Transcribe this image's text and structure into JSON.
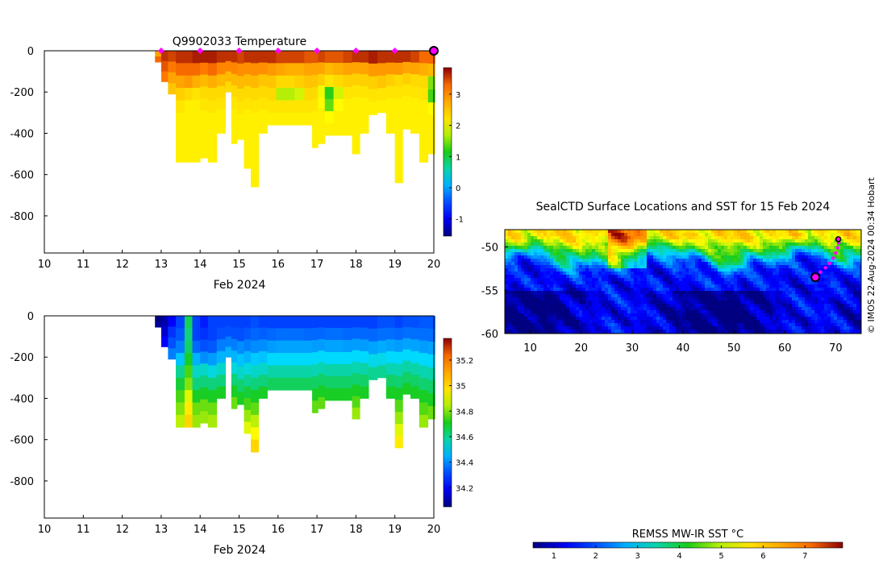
{
  "chart_data": [
    {
      "id": "temperature-profile",
      "type": "heatmap",
      "title": "Q9902033  Temperature",
      "xlabel": "Feb 2024",
      "x_ticks": [
        10,
        11,
        12,
        13,
        14,
        15,
        16,
        17,
        18,
        19,
        20
      ],
      "y_ticks": [
        0,
        -200,
        -400,
        -600,
        -800
      ],
      "xlim": [
        10,
        20
      ],
      "ylim": [
        -980,
        0
      ],
      "colorbar": {
        "range": [
          -1.55,
          3.85
        ],
        "ticks": [
          "-1",
          "0",
          "1",
          "2",
          "3"
        ],
        "tick_values": [
          -1,
          0,
          1,
          2,
          3
        ],
        "colormap": "jet"
      },
      "surface_markers_x": [
        13,
        14,
        15,
        16,
        17,
        18,
        19
      ],
      "last_position_x": 20,
      "profiles": [
        {
          "x": 12.9,
          "depth": 55,
          "values": [
            2.8,
            3.3
          ]
        },
        {
          "x": 13.1,
          "depth": 150,
          "values": [
            3.6,
            3.4,
            3.2
          ]
        },
        {
          "x": 13.25,
          "depth": 210,
          "values": [
            3.5,
            3.2,
            2.8,
            2.5
          ]
        },
        {
          "x": 13.5,
          "depth": 540,
          "values": [
            3.6,
            3.3,
            2.8,
            2.4,
            2.2,
            2.1,
            2.1,
            2.1,
            2.1
          ]
        },
        {
          "x": 13.7,
          "depth": 540,
          "values": [
            3.6,
            3.3,
            2.9,
            2.3,
            2.1,
            2.1,
            2.1,
            2.1,
            2.1
          ]
        },
        {
          "x": 13.9,
          "depth": 540,
          "values": [
            3.7,
            3.3,
            2.7,
            2.2,
            2.1,
            2.1,
            2.1,
            2.1,
            2.1
          ]
        },
        {
          "x": 14.1,
          "depth": 520,
          "values": [
            3.7,
            3.2,
            2.6,
            2.3,
            2.2,
            2.1,
            2.1,
            2.1,
            2.1
          ]
        },
        {
          "x": 14.3,
          "depth": 540,
          "values": [
            3.7,
            3.3,
            2.7,
            2.3,
            2.2,
            2.1,
            2.1,
            2.1,
            2.1
          ]
        },
        {
          "x": 14.55,
          "depth": 400,
          "values": [
            3.6,
            3.1,
            2.6,
            2.3,
            2.2,
            2.1,
            2.1
          ]
        },
        {
          "x": 14.75,
          "depth": 200,
          "values": [
            3.6,
            3.1,
            2.6,
            2.3
          ]
        },
        {
          "x": 14.85,
          "depth": 450,
          "values": [
            3.6,
            3.1,
            2.6,
            2.3,
            2.2,
            2.1,
            2.1,
            2.1
          ]
        },
        {
          "x": 15.05,
          "depth": 430,
          "values": [
            3.5,
            3.0,
            2.6,
            2.3,
            2.2,
            2.1,
            2.1
          ]
        },
        {
          "x": 15.2,
          "depth": 570,
          "values": [
            3.6,
            3.0,
            2.6,
            2.3,
            2.2,
            2.1,
            2.1,
            2.1,
            2.1,
            2.1
          ]
        },
        {
          "x": 15.4,
          "depth": 660,
          "values": [
            3.6,
            3.0,
            2.6,
            2.3,
            2.2,
            2.1,
            2.1,
            2.1,
            2.1,
            2.1,
            2.1
          ]
        },
        {
          "x": 15.6,
          "depth": 400,
          "values": [
            3.6,
            3.0,
            2.5,
            2.3,
            2.2,
            2.1,
            2.1
          ]
        },
        {
          "x": 15.85,
          "depth": 360,
          "values": [
            3.6,
            2.9,
            2.5,
            2.3,
            2.2,
            2.1
          ]
        },
        {
          "x": 16.05,
          "depth": 360,
          "values": [
            3.5,
            2.8,
            2.3,
            1.7,
            2.2,
            2.1
          ]
        },
        {
          "x": 16.3,
          "depth": 360,
          "values": [
            3.5,
            2.7,
            2.3,
            1.7,
            2.2,
            2.1
          ]
        },
        {
          "x": 16.55,
          "depth": 360,
          "values": [
            3.5,
            2.7,
            2.4,
            1.8,
            2.2,
            2.1
          ]
        },
        {
          "x": 16.8,
          "depth": 360,
          "values": [
            3.4,
            2.8,
            2.5,
            2.3,
            2.2,
            2.1
          ]
        },
        {
          "x": 16.95,
          "depth": 470,
          "values": [
            3.4,
            2.8,
            2.5,
            2.3,
            2.2,
            2.1,
            2.1,
            2.1
          ]
        },
        {
          "x": 17.1,
          "depth": 450,
          "values": [
            3.5,
            2.8,
            2.4,
            1.9,
            2.0,
            2.1,
            2.1,
            2.1
          ]
        },
        {
          "x": 17.3,
          "depth": 410,
          "values": [
            3.4,
            2.6,
            2.2,
            1.2,
            1.4,
            2.0,
            2.1
          ]
        },
        {
          "x": 17.55,
          "depth": 410,
          "values": [
            3.4,
            2.7,
            2.3,
            1.8,
            2.0,
            2.1,
            2.1
          ]
        },
        {
          "x": 17.8,
          "depth": 410,
          "values": [
            3.5,
            2.8,
            2.4,
            2.2,
            2.1,
            2.1,
            2.1
          ]
        },
        {
          "x": 18.0,
          "depth": 500,
          "values": [
            3.6,
            2.8,
            2.4,
            2.2,
            2.1,
            2.1,
            2.1,
            2.1,
            2.1
          ]
        },
        {
          "x": 18.2,
          "depth": 400,
          "values": [
            3.6,
            2.8,
            2.4,
            2.2,
            2.1,
            2.1,
            2.1
          ]
        },
        {
          "x": 18.45,
          "depth": 310,
          "values": [
            3.7,
            2.9,
            2.4,
            2.2,
            2.1
          ]
        },
        {
          "x": 18.65,
          "depth": 300,
          "values": [
            3.6,
            2.9,
            2.5,
            2.2,
            2.1
          ]
        },
        {
          "x": 18.9,
          "depth": 400,
          "values": [
            3.6,
            2.9,
            2.4,
            2.2,
            2.1,
            2.1,
            2.1
          ]
        },
        {
          "x": 19.1,
          "depth": 640,
          "values": [
            3.6,
            2.9,
            2.3,
            2.2,
            2.1,
            2.1,
            2.1,
            2.1,
            2.1,
            2.1,
            2.1
          ]
        },
        {
          "x": 19.3,
          "depth": 380,
          "values": [
            3.6,
            2.8,
            2.4,
            2.2,
            2.1,
            2.1,
            2.1
          ]
        },
        {
          "x": 19.5,
          "depth": 400,
          "values": [
            3.5,
            2.8,
            2.3,
            2.2,
            2.1,
            2.1,
            2.1
          ]
        },
        {
          "x": 19.75,
          "depth": 540,
          "values": [
            3.3,
            2.7,
            2.3,
            2.2,
            2.1,
            2.1,
            2.1,
            2.1,
            2.1
          ]
        },
        {
          "x": 19.95,
          "depth": 500,
          "values": [
            3.3,
            2.6,
            1.5,
            1.3,
            2.0,
            2.1,
            2.1,
            2.1
          ]
        }
      ]
    },
    {
      "id": "salinity-profile",
      "type": "heatmap",
      "title": "",
      "xlabel": "Feb 2024",
      "x_ticks": [
        10,
        11,
        12,
        13,
        14,
        15,
        16,
        17,
        18,
        19,
        20
      ],
      "y_ticks": [
        0,
        -200,
        -400,
        -600,
        -800
      ],
      "xlim": [
        10,
        20
      ],
      "ylim": [
        -980,
        0
      ],
      "colorbar": {
        "range": [
          34.05,
          35.37
        ],
        "ticks": [
          "34.2",
          "34.4",
          "34.6",
          "34.8",
          "35",
          "35.2"
        ],
        "tick_values": [
          34.2,
          34.4,
          34.6,
          34.8,
          35.0,
          35.2
        ],
        "colormap": "jet"
      },
      "profiles": [
        {
          "x": 12.9,
          "depth": 55,
          "values": [
            34.05,
            34.08
          ]
        },
        {
          "x": 13.1,
          "depth": 150,
          "values": [
            34.1,
            34.14,
            34.2
          ]
        },
        {
          "x": 13.25,
          "depth": 210,
          "values": [
            34.2,
            34.28,
            34.32,
            34.38
          ]
        },
        {
          "x": 13.5,
          "depth": 540,
          "values": [
            34.3,
            34.33,
            34.38,
            34.47,
            34.6,
            34.68,
            34.75,
            34.8,
            34.85
          ]
        },
        {
          "x": 13.7,
          "depth": 540,
          "values": [
            34.65,
            34.62,
            34.64,
            34.7,
            34.75,
            34.8,
            34.88,
            34.95,
            35.0
          ]
        },
        {
          "x": 13.9,
          "depth": 540,
          "values": [
            34.3,
            34.3,
            34.35,
            34.45,
            34.55,
            34.62,
            34.7,
            34.78,
            34.82
          ]
        },
        {
          "x": 14.1,
          "depth": 520,
          "values": [
            34.25,
            34.28,
            34.32,
            34.4,
            34.55,
            34.62,
            34.7,
            34.78,
            34.82
          ]
        },
        {
          "x": 14.3,
          "depth": 540,
          "values": [
            34.3,
            34.3,
            34.33,
            34.42,
            34.53,
            34.62,
            34.7,
            34.78,
            34.83
          ]
        },
        {
          "x": 14.55,
          "depth": 400,
          "values": [
            34.3,
            34.32,
            34.38,
            34.45,
            34.55,
            34.62,
            34.7
          ]
        },
        {
          "x": 14.75,
          "depth": 200,
          "values": [
            34.3,
            34.32,
            34.38,
            34.45
          ]
        },
        {
          "x": 14.85,
          "depth": 450,
          "values": [
            34.3,
            34.32,
            34.38,
            34.45,
            34.53,
            34.62,
            34.7,
            34.78
          ]
        },
        {
          "x": 15.05,
          "depth": 430,
          "values": [
            34.3,
            34.32,
            34.4,
            34.47,
            34.55,
            34.63,
            34.7
          ]
        },
        {
          "x": 15.2,
          "depth": 570,
          "values": [
            34.3,
            34.33,
            34.38,
            34.45,
            34.53,
            34.6,
            34.68,
            34.75,
            34.82,
            34.88
          ]
        },
        {
          "x": 15.4,
          "depth": 660,
          "values": [
            34.32,
            34.35,
            34.4,
            34.48,
            34.55,
            34.62,
            34.7,
            34.77,
            34.85,
            34.92,
            35.0
          ]
        },
        {
          "x": 15.6,
          "depth": 400,
          "values": [
            34.3,
            34.34,
            34.4,
            34.47,
            34.55,
            34.62,
            34.7
          ]
        },
        {
          "x": 15.85,
          "depth": 360,
          "values": [
            34.3,
            34.35,
            34.42,
            34.5,
            34.58,
            34.65
          ]
        },
        {
          "x": 16.05,
          "depth": 360,
          "values": [
            34.3,
            34.36,
            34.43,
            34.5,
            34.58,
            34.65
          ]
        },
        {
          "x": 16.3,
          "depth": 360,
          "values": [
            34.3,
            34.36,
            34.43,
            34.5,
            34.58,
            34.65
          ]
        },
        {
          "x": 16.55,
          "depth": 360,
          "values": [
            34.3,
            34.36,
            34.43,
            34.5,
            34.58,
            34.65
          ]
        },
        {
          "x": 16.8,
          "depth": 360,
          "values": [
            34.3,
            34.35,
            34.43,
            34.5,
            34.58,
            34.65
          ]
        },
        {
          "x": 16.95,
          "depth": 470,
          "values": [
            34.3,
            34.35,
            34.42,
            34.5,
            34.57,
            34.64,
            34.7,
            34.77
          ]
        },
        {
          "x": 17.1,
          "depth": 450,
          "values": [
            34.3,
            34.35,
            34.42,
            34.5,
            34.57,
            34.64,
            34.7,
            34.77
          ]
        },
        {
          "x": 17.3,
          "depth": 410,
          "values": [
            34.3,
            34.36,
            34.43,
            34.5,
            34.58,
            34.64,
            34.7
          ]
        },
        {
          "x": 17.55,
          "depth": 410,
          "values": [
            34.3,
            34.36,
            34.43,
            34.5,
            34.58,
            34.64,
            34.7
          ]
        },
        {
          "x": 17.8,
          "depth": 410,
          "values": [
            34.3,
            34.35,
            34.42,
            34.5,
            34.58,
            34.64,
            34.7
          ]
        },
        {
          "x": 18.0,
          "depth": 500,
          "values": [
            34.3,
            34.35,
            34.42,
            34.5,
            34.57,
            34.63,
            34.7,
            34.76,
            34.82
          ]
        },
        {
          "x": 18.2,
          "depth": 400,
          "values": [
            34.3,
            34.35,
            34.42,
            34.5,
            34.58,
            34.64,
            34.7
          ]
        },
        {
          "x": 18.45,
          "depth": 310,
          "values": [
            34.3,
            34.35,
            34.43,
            34.52,
            34.6
          ]
        },
        {
          "x": 18.65,
          "depth": 300,
          "values": [
            34.32,
            34.36,
            34.44,
            34.52,
            34.6
          ]
        },
        {
          "x": 18.9,
          "depth": 400,
          "values": [
            34.32,
            34.36,
            34.43,
            34.5,
            34.57,
            34.64,
            34.7
          ]
        },
        {
          "x": 19.1,
          "depth": 640,
          "values": [
            34.3,
            34.35,
            34.42,
            34.5,
            34.57,
            34.63,
            34.7,
            34.76,
            34.82,
            34.88,
            34.95
          ]
        },
        {
          "x": 19.3,
          "depth": 380,
          "values": [
            34.32,
            34.36,
            34.43,
            34.5,
            34.58,
            34.64,
            34.7
          ]
        },
        {
          "x": 19.5,
          "depth": 400,
          "values": [
            34.32,
            34.36,
            34.43,
            34.5,
            34.58,
            34.64,
            34.7
          ]
        },
        {
          "x": 19.75,
          "depth": 540,
          "values": [
            34.33,
            34.36,
            34.42,
            34.5,
            34.57,
            34.63,
            34.7,
            34.76,
            34.82
          ]
        },
        {
          "x": 19.95,
          "depth": 500,
          "values": [
            34.33,
            34.36,
            34.43,
            34.5,
            34.58,
            34.64,
            34.7,
            34.78
          ]
        }
      ]
    },
    {
      "id": "sst-map",
      "type": "heatmap",
      "title": "SealCTD Surface Locations and SST for 15 Feb 2024",
      "x_ticks": [
        10,
        20,
        30,
        40,
        50,
        60,
        70
      ],
      "y_ticks": [
        -50,
        -55,
        -60
      ],
      "xlim": [
        5,
        75
      ],
      "ylim": [
        -60,
        -48
      ],
      "colorbar": {
        "label": "REMSS MW-IR SST °C",
        "range": [
          0.5,
          7.9
        ],
        "ticks": [
          "1",
          "2",
          "3",
          "4",
          "5",
          "6",
          "7"
        ],
        "tick_values": [
          1,
          2,
          3,
          4,
          5,
          6,
          7
        ],
        "colormap": "jet"
      },
      "track": {
        "lon": [
          66.0,
          67.0,
          68.0,
          68.8,
          69.5,
          70.0,
          70.4,
          70.6,
          70.5
        ],
        "lat": [
          -53.5,
          -52.9,
          -52.4,
          -51.9,
          -51.3,
          -50.7,
          -50.1,
          -49.5,
          -49.1
        ]
      },
      "start_position": {
        "lon": 66.0,
        "lat": -53.5
      },
      "latest_position": {
        "lon": 70.5,
        "lat": -49.1
      }
    }
  ],
  "credit": "© IMOS 22-Aug-2024 00:34 Hobart"
}
